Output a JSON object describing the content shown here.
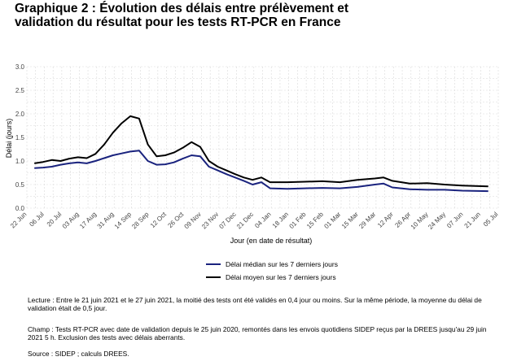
{
  "title_line1": "Graphique 2 : Évolution des délais entre prélèvement et",
  "title_line2": "validation du résultat pour les tests RT-PCR en France",
  "chart_data": {
    "type": "line",
    "xlabel": "Jour (en date de résultat)",
    "ylabel": "Délai (jours)",
    "ylim": [
      0,
      3
    ],
    "yticks": [
      "0.0",
      "0.5",
      "1.0",
      "1.5",
      "2.0",
      "2.5",
      "3.0"
    ],
    "xticks": [
      "22 Jun",
      "06 Jul",
      "20 Jul",
      "03 Aug",
      "17 Aug",
      "31 Aug",
      "14 Sep",
      "28 Sep",
      "12 Oct",
      "26 Oct",
      "09 Nov",
      "23 Nov",
      "07 Dec",
      "21 Dec",
      "04 Jan",
      "18 Jan",
      "01 Feb",
      "15 Feb",
      "01 Mar",
      "15 Mar",
      "29 Mar",
      "12 Apr",
      "26 Apr",
      "10 May",
      "24 May",
      "07 Jun",
      "21 Jun",
      "05 Jul"
    ],
    "xlim": [
      "2020-06-22",
      "2021-07-05"
    ],
    "grid": true,
    "series": [
      {
        "name": "Délai médian sur les 7 derniers jours",
        "color": "#1a237e",
        "points": [
          [
            "2020-06-28",
            0.85
          ],
          [
            "2020-07-05",
            0.86
          ],
          [
            "2020-07-12",
            0.88
          ],
          [
            "2020-07-19",
            0.92
          ],
          [
            "2020-07-26",
            0.95
          ],
          [
            "2020-08-02",
            0.97
          ],
          [
            "2020-08-09",
            0.95
          ],
          [
            "2020-08-16",
            1.0
          ],
          [
            "2020-08-23",
            1.06
          ],
          [
            "2020-08-30",
            1.12
          ],
          [
            "2020-09-06",
            1.16
          ],
          [
            "2020-09-13",
            1.2
          ],
          [
            "2020-09-20",
            1.22
          ],
          [
            "2020-09-27",
            1.0
          ],
          [
            "2020-10-04",
            0.92
          ],
          [
            "2020-10-11",
            0.93
          ],
          [
            "2020-10-18",
            0.97
          ],
          [
            "2020-10-25",
            1.05
          ],
          [
            "2020-11-01",
            1.12
          ],
          [
            "2020-11-08",
            1.1
          ],
          [
            "2020-11-15",
            0.88
          ],
          [
            "2020-11-22",
            0.8
          ],
          [
            "2020-11-29",
            0.72
          ],
          [
            "2020-12-06",
            0.65
          ],
          [
            "2020-12-13",
            0.58
          ],
          [
            "2020-12-20",
            0.5
          ],
          [
            "2020-12-27",
            0.55
          ],
          [
            "2021-01-03",
            0.42
          ],
          [
            "2021-01-17",
            0.41
          ],
          [
            "2021-01-31",
            0.42
          ],
          [
            "2021-02-14",
            0.43
          ],
          [
            "2021-02-28",
            0.42
          ],
          [
            "2021-03-14",
            0.45
          ],
          [
            "2021-03-28",
            0.5
          ],
          [
            "2021-04-04",
            0.52
          ],
          [
            "2021-04-11",
            0.44
          ],
          [
            "2021-04-25",
            0.4
          ],
          [
            "2021-05-09",
            0.39
          ],
          [
            "2021-05-23",
            0.39
          ],
          [
            "2021-06-06",
            0.37
          ],
          [
            "2021-06-27",
            0.36
          ]
        ]
      },
      {
        "name": "Délai moyen sur les 7 derniers jours",
        "color": "#000000",
        "points": [
          [
            "2020-06-28",
            0.95
          ],
          [
            "2020-07-05",
            0.98
          ],
          [
            "2020-07-12",
            1.02
          ],
          [
            "2020-07-19",
            1.0
          ],
          [
            "2020-07-26",
            1.05
          ],
          [
            "2020-08-02",
            1.08
          ],
          [
            "2020-08-09",
            1.06
          ],
          [
            "2020-08-16",
            1.15
          ],
          [
            "2020-08-23",
            1.35
          ],
          [
            "2020-08-30",
            1.6
          ],
          [
            "2020-09-06",
            1.8
          ],
          [
            "2020-09-13",
            1.95
          ],
          [
            "2020-09-20",
            1.9
          ],
          [
            "2020-09-27",
            1.35
          ],
          [
            "2020-10-04",
            1.1
          ],
          [
            "2020-10-11",
            1.12
          ],
          [
            "2020-10-18",
            1.18
          ],
          [
            "2020-10-25",
            1.28
          ],
          [
            "2020-11-01",
            1.4
          ],
          [
            "2020-11-08",
            1.3
          ],
          [
            "2020-11-15",
            1.0
          ],
          [
            "2020-11-22",
            0.88
          ],
          [
            "2020-11-29",
            0.8
          ],
          [
            "2020-12-06",
            0.72
          ],
          [
            "2020-12-13",
            0.65
          ],
          [
            "2020-12-20",
            0.6
          ],
          [
            "2020-12-27",
            0.65
          ],
          [
            "2021-01-03",
            0.55
          ],
          [
            "2021-01-17",
            0.55
          ],
          [
            "2021-01-31",
            0.56
          ],
          [
            "2021-02-14",
            0.57
          ],
          [
            "2021-02-28",
            0.55
          ],
          [
            "2021-03-14",
            0.6
          ],
          [
            "2021-03-28",
            0.63
          ],
          [
            "2021-04-04",
            0.65
          ],
          [
            "2021-04-11",
            0.58
          ],
          [
            "2021-04-25",
            0.52
          ],
          [
            "2021-05-09",
            0.53
          ],
          [
            "2021-05-23",
            0.5
          ],
          [
            "2021-06-06",
            0.48
          ],
          [
            "2021-06-27",
            0.46
          ]
        ]
      }
    ]
  },
  "lecture": "Lecture : Entre le 21 juin 2021 et le 27 juin 2021, la moitié des tests ont été validés en 0,4 jour ou moins. Sur la même période, la moyenne du délai de validation était de 0,5 jour.",
  "champ": "Champ : Tests RT-PCR avec date de validation depuis le 25 juin 2020, remontés dans les envois quotidiens SIDEP reçus par la DREES jusqu'au 29 juin 2021 5 h. Exclusion des tests avec délais aberrants.",
  "source": "Source : SIDEP ; calculs DREES."
}
